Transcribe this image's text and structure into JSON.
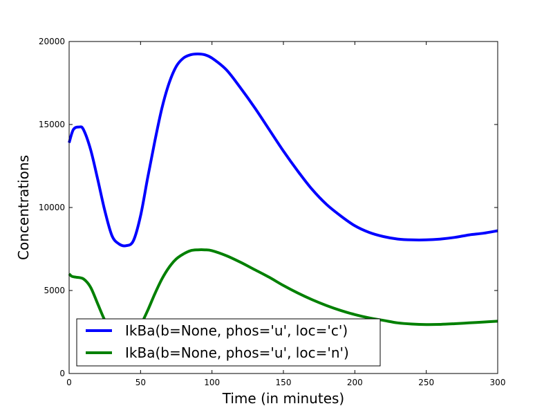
{
  "chart_data": {
    "type": "line",
    "title": "",
    "xlabel": "Time (in minutes)",
    "ylabel": "Concentrations",
    "xlim": [
      0,
      300
    ],
    "ylim": [
      0,
      20000
    ],
    "xticks": [
      "0",
      "50",
      "100",
      "150",
      "200",
      "250",
      "300"
    ],
    "yticks": [
      "0",
      "5000",
      "10000",
      "15000",
      "20000"
    ],
    "grid": false,
    "legend_position": "lower-left",
    "series": [
      {
        "name": "IkBa(b=None, phos='u', loc='c')",
        "color": "#0000ff",
        "x": [
          0,
          3,
          7,
          10,
          15,
          20,
          25,
          30,
          35,
          40,
          45,
          50,
          55,
          60,
          65,
          70,
          75,
          80,
          85,
          90,
          95,
          100,
          110,
          120,
          130,
          140,
          150,
          160,
          170,
          180,
          190,
          200,
          210,
          220,
          230,
          240,
          250,
          260,
          270,
          280,
          290,
          300
        ],
        "y": [
          13900,
          14700,
          14850,
          14700,
          13500,
          11700,
          9800,
          8300,
          7800,
          7700,
          8000,
          9500,
          11800,
          14000,
          16000,
          17500,
          18500,
          19000,
          19200,
          19250,
          19200,
          19000,
          18300,
          17200,
          16000,
          14700,
          13400,
          12200,
          11100,
          10200,
          9500,
          8900,
          8500,
          8250,
          8100,
          8050,
          8050,
          8100,
          8200,
          8350,
          8450,
          8600
        ]
      },
      {
        "name": "IkBa(b=None, phos='u', loc='n')",
        "color": "#008000",
        "x": [
          0,
          2,
          5,
          10,
          15,
          20,
          25,
          30,
          35,
          40,
          45,
          50,
          55,
          60,
          65,
          70,
          75,
          80,
          85,
          90,
          95,
          100,
          110,
          120,
          130,
          140,
          150,
          160,
          170,
          180,
          190,
          200,
          210,
          220,
          230,
          240,
          250,
          260,
          270,
          280,
          290,
          300
        ],
        "y": [
          6000,
          5850,
          5800,
          5700,
          5200,
          4200,
          3200,
          2500,
          2100,
          2000,
          2200,
          2900,
          3800,
          4800,
          5700,
          6400,
          6900,
          7200,
          7400,
          7450,
          7450,
          7400,
          7100,
          6700,
          6250,
          5800,
          5300,
          4850,
          4450,
          4100,
          3800,
          3550,
          3350,
          3200,
          3050,
          2980,
          2950,
          2960,
          3000,
          3050,
          3100,
          3150
        ]
      }
    ]
  }
}
